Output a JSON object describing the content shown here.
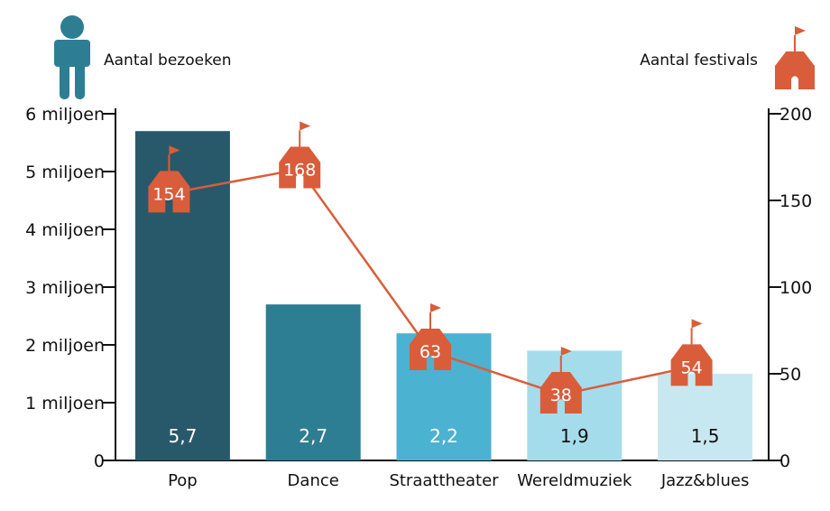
{
  "legend": {
    "left_label": "Aantal bezoeken",
    "right_label": "Aantal festivals",
    "left_icon": "person-icon",
    "right_icon": "house-flag-icon"
  },
  "colors": {
    "line": "#d95d3a",
    "house": "#d95d3a",
    "person": "#2e7e93",
    "axis": "#111111"
  },
  "chart_data": {
    "type": "bar",
    "categories": [
      "Pop",
      "Dance",
      "Straattheater",
      "Wereldmuziek",
      "Jazz&blues"
    ],
    "series": [
      {
        "values": [
          5.7,
          2.7,
          2.2,
          1.9,
          1.5
        ],
        "value_labels": [
          "5,7",
          "2,7",
          "2,2",
          "1,9",
          "1,5"
        ],
        "colors": [
          "#28596b",
          "#2e7e93",
          "#4cb2d1",
          "#a5dcec",
          "#c8e8f1"
        ],
        "label_colors": [
          "#ffffff",
          "#ffffff",
          "#ffffff",
          "#111111",
          "#111111"
        ]
      },
      {
        "type": "line",
        "axis": "right",
        "values": [
          154,
          168,
          63,
          38,
          54
        ]
      }
    ],
    "y_left": {
      "ylim": [
        0,
        6
      ],
      "ticks": [
        0,
        1,
        2,
        3,
        4,
        5,
        6
      ],
      "tick_labels": [
        "0",
        "1 miljoen",
        "2 miljoen",
        "3 miljoen",
        "4 miljoen",
        "5 miljoen",
        "6 miljoen"
      ]
    },
    "y_right": {
      "ylim": [
        0,
        200
      ],
      "ticks": [
        0,
        50,
        100,
        150,
        200
      ],
      "tick_labels": [
        "0",
        "50",
        "100",
        "150",
        "200"
      ]
    },
    "grid": false,
    "legend_placement": "top"
  }
}
